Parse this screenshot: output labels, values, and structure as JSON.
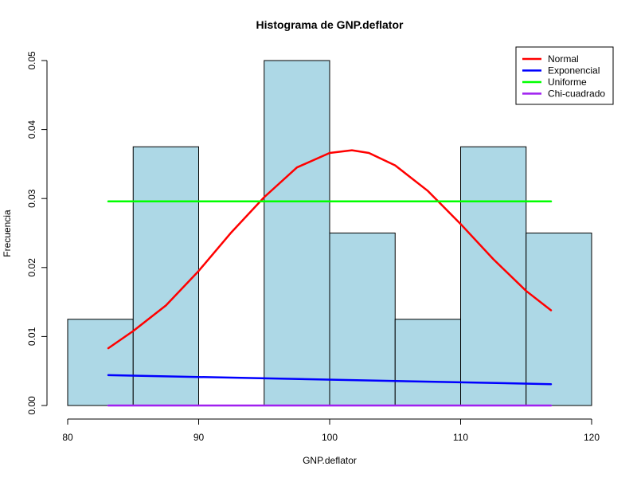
{
  "chart_data": {
    "type": "bar",
    "title": "Histograma de GNP.deflator",
    "xlabel": "GNP.deflator",
    "ylabel": "Frecuencia",
    "xlim": [
      80,
      120
    ],
    "ylim": [
      0,
      0.05
    ],
    "x_ticks": [
      80,
      90,
      100,
      110,
      120
    ],
    "y_ticks": [
      0.0,
      0.01,
      0.02,
      0.03,
      0.04,
      0.05
    ],
    "y_tick_labels": [
      "0.00",
      "0.01",
      "0.02",
      "0.03",
      "0.04",
      "0.05"
    ],
    "grid": false,
    "legend_position": "top-right",
    "bar_color": "#add8e6",
    "bins": [
      {
        "from": 80,
        "to": 85,
        "density": 0.0125
      },
      {
        "from": 85,
        "to": 90,
        "density": 0.0375
      },
      {
        "from": 90,
        "to": 95,
        "density": 0.0
      },
      {
        "from": 95,
        "to": 100,
        "density": 0.05
      },
      {
        "from": 100,
        "to": 105,
        "density": 0.025
      },
      {
        "from": 105,
        "to": 110,
        "density": 0.0125
      },
      {
        "from": 110,
        "to": 115,
        "density": 0.0375
      },
      {
        "from": 115,
        "to": 120,
        "density": 0.025
      }
    ],
    "series": [
      {
        "name": "Normal",
        "color": "#ff0000",
        "x": [
          83.1,
          85,
          87.5,
          90,
          92.5,
          95,
          97.5,
          100,
          101.7,
          103,
          105,
          107.5,
          110,
          112.5,
          115,
          116.9
        ],
        "y": [
          0.0083,
          0.0108,
          0.0145,
          0.0195,
          0.0251,
          0.0302,
          0.0345,
          0.0366,
          0.037,
          0.0366,
          0.0348,
          0.0311,
          0.0263,
          0.0212,
          0.0166,
          0.0138
        ]
      },
      {
        "name": "Exponencial",
        "color": "#0000ff",
        "x": [
          83.1,
          116.9
        ],
        "y": [
          0.0044,
          0.0031
        ]
      },
      {
        "name": "Uniforme",
        "color": "#00ff00",
        "x": [
          83.1,
          116.9
        ],
        "y": [
          0.0296,
          0.0296
        ]
      },
      {
        "name": "Chi-cuadrado",
        "color": "#a020f0",
        "x": [
          83.1,
          116.9
        ],
        "y": [
          0.0,
          0.0
        ]
      }
    ]
  }
}
